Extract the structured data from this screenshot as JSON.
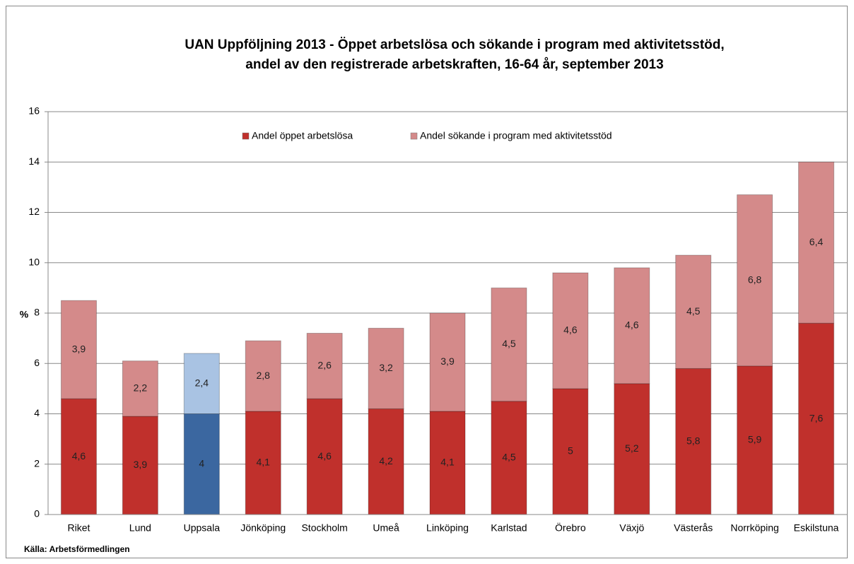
{
  "chart_data": {
    "type": "stacked_bar",
    "title": [
      "UAN Uppföljning 2013 - Öppet arbetslösa och sökande i program med aktivitetsstöd,",
      "andel av den registrerade arbetskraften, 16-64 år, september 2013"
    ],
    "ylabel": "%",
    "source": "Källa: Arbetsförmedlingen",
    "categories": [
      "Riket",
      "Lund",
      "Uppsala",
      "Jönköping",
      "Stockholm",
      "Umeå",
      "Linköping",
      "Karlstad",
      "Örebro",
      "Växjö",
      "Västerås",
      "Norrköping",
      "Eskilstuna"
    ],
    "series": [
      {
        "name": "Andel öppet arbetslösa",
        "color": "#c0302c",
        "colors": [
          "#c0302c",
          "#c0302c",
          "#3b67a0",
          "#c0302c",
          "#c0302c",
          "#c0302c",
          "#c0302c",
          "#c0302c",
          "#c0302c",
          "#c0302c",
          "#c0302c",
          "#c0302c",
          "#c0302c"
        ],
        "values": [
          4.6,
          3.9,
          4,
          4.1,
          4.6,
          4.2,
          4.1,
          4.5,
          5,
          5.2,
          5.8,
          5.9,
          7.6
        ],
        "value_labels": [
          "4,6",
          "3,9",
          "4",
          "4,1",
          "4,6",
          "4,2",
          "4,1",
          "4,5",
          "5",
          "5,2",
          "5,8",
          "5,9",
          "7,6"
        ]
      },
      {
        "name": "Andel sökande i program med aktivitetsstöd",
        "color": "#d48a8a",
        "colors": [
          "#d48a8a",
          "#d48a8a",
          "#a9c3e3",
          "#d48a8a",
          "#d48a8a",
          "#d48a8a",
          "#d48a8a",
          "#d48a8a",
          "#d48a8a",
          "#d48a8a",
          "#d48a8a",
          "#d48a8a",
          "#d48a8a"
        ],
        "values": [
          3.9,
          2.2,
          2.4,
          2.8,
          2.6,
          3.2,
          3.9,
          4.5,
          4.6,
          4.6,
          4.5,
          6.8,
          6.4
        ],
        "value_labels": [
          "3,9",
          "2,2",
          "2,4",
          "2,8",
          "2,6",
          "3,2",
          "3,9",
          "4,5",
          "4,6",
          "4,6",
          "4,5",
          "6,8",
          "6,4"
        ]
      }
    ],
    "ylim": [
      0,
      16
    ],
    "yticks": [
      0,
      2,
      4,
      6,
      8,
      10,
      12,
      14,
      16
    ],
    "grid": true,
    "legend": "top"
  }
}
